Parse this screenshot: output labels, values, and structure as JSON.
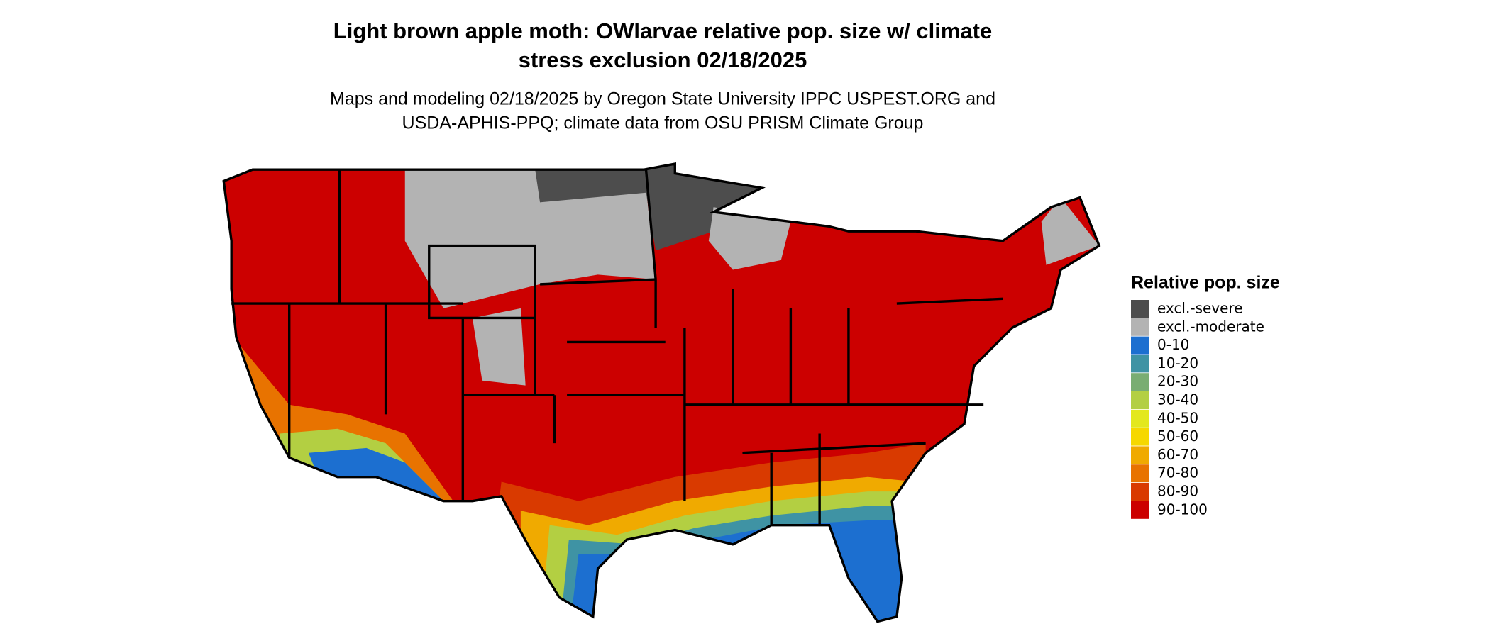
{
  "title": [
    "Light brown apple moth: OWlarvae relative pop. size w/ climate",
    "stress exclusion 02/18/2025"
  ],
  "subtitle": [
    "Maps and modeling 02/18/2025 by Oregon State University IPPC USPEST.ORG and",
    "USDA-APHIS-PPQ; climate data from OSU PRISM Climate Group"
  ],
  "legend": {
    "title": "Relative pop. size",
    "items": [
      {
        "label": "excl.-severe",
        "color": "#4d4d4d"
      },
      {
        "label": "excl.-moderate",
        "color": "#b3b3b3"
      },
      {
        "label": "0-10",
        "color": "#1c6fd0"
      },
      {
        "label": "10-20",
        "color": "#3f93a4"
      },
      {
        "label": "20-30",
        "color": "#79ad72"
      },
      {
        "label": "30-40",
        "color": "#b3cf42"
      },
      {
        "label": "40-50",
        "color": "#e3e81e"
      },
      {
        "label": "50-60",
        "color": "#f6d800"
      },
      {
        "label": "60-70",
        "color": "#f0aa00"
      },
      {
        "label": "70-80",
        "color": "#e87300"
      },
      {
        "label": "80-90",
        "color": "#d93a00"
      },
      {
        "label": "90-100",
        "color": "#cc0000"
      }
    ]
  }
}
